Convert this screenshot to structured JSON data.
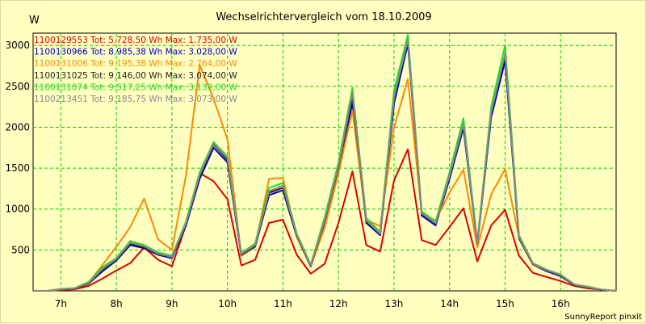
{
  "chart_data": {
    "type": "line",
    "title": "Wechselrichtervergleich vom 18.10.2009",
    "ylabel": "W",
    "xlabel": "",
    "footer": "SunnyReport pinxit",
    "ylim": [
      0,
      3150
    ],
    "xlim": [
      6.5,
      17.0
    ],
    "yticks": [
      500,
      1000,
      1500,
      2000,
      2500,
      3000
    ],
    "xticks": [
      7,
      8,
      9,
      10,
      11,
      12,
      13,
      14,
      15,
      16
    ],
    "xtick_labels": [
      "7h",
      "8h",
      "9h",
      "10h",
      "11h",
      "12h",
      "13h",
      "14h",
      "15h",
      "16h"
    ],
    "grid": true,
    "legend_position": "top-left",
    "x": [
      6.5,
      6.75,
      7.0,
      7.25,
      7.5,
      7.75,
      8.0,
      8.25,
      8.5,
      8.75,
      9.0,
      9.25,
      9.5,
      9.75,
      10.0,
      10.25,
      10.5,
      10.75,
      11.0,
      11.25,
      11.5,
      11.75,
      12.0,
      12.25,
      12.5,
      12.75,
      13.0,
      13.25,
      13.5,
      13.75,
      14.0,
      14.25,
      14.5,
      14.75,
      15.0,
      15.25,
      15.5,
      15.75,
      16.0,
      16.25,
      16.5,
      16.75,
      17.0
    ],
    "series": [
      {
        "name": "1100129553 Tot: 5.728,50 Wh Max: 1.735,00 W",
        "color": "#dd0000",
        "values": [
          0,
          0,
          10,
          20,
          60,
          150,
          250,
          340,
          530,
          380,
          300,
          800,
          1440,
          1340,
          1120,
          310,
          380,
          830,
          870,
          440,
          210,
          330,
          830,
          1460,
          560,
          480,
          1350,
          1730,
          620,
          560,
          780,
          1010,
          360,
          800,
          990,
          430,
          220,
          170,
          120,
          60,
          30,
          15,
          0
        ]
      },
      {
        "name": "1100130966 Tot: 8.985,38 Wh Max: 3.028,00 W",
        "color": "#0000cc",
        "values": [
          0,
          0,
          20,
          30,
          90,
          240,
          370,
          560,
          520,
          440,
          400,
          790,
          1370,
          1750,
          1570,
          430,
          540,
          1170,
          1230,
          660,
          300,
          830,
          1470,
          2300,
          830,
          680,
          2290,
          3020,
          920,
          800,
          1370,
          1990,
          570,
          2120,
          2810,
          640,
          320,
          240,
          180,
          70,
          40,
          15,
          0
        ]
      },
      {
        "name": "1100131006 Tot: 9.195,38 Wh Max: 2.764,00 W",
        "color": "#ff8800",
        "values": [
          0,
          0,
          20,
          30,
          100,
          320,
          540,
          780,
          1130,
          630,
          500,
          1400,
          2760,
          2350,
          1850,
          430,
          550,
          1370,
          1380,
          660,
          300,
          770,
          1440,
          2200,
          870,
          790,
          2000,
          2590,
          940,
          860,
          1200,
          1480,
          530,
          1180,
          1490,
          650,
          320,
          250,
          190,
          80,
          40,
          15,
          0
        ]
      },
      {
        "name": "1100131025 Tot: 9.146,00 Wh Max: 3.074,00 W",
        "color": "#222222",
        "values": [
          0,
          0,
          20,
          30,
          90,
          260,
          380,
          580,
          530,
          450,
          410,
          810,
          1400,
          1790,
          1600,
          440,
          550,
          1200,
          1260,
          670,
          300,
          850,
          1510,
          2380,
          850,
          690,
          2350,
          3070,
          940,
          820,
          1400,
          2030,
          580,
          2170,
          2880,
          650,
          330,
          250,
          190,
          70,
          40,
          15,
          0
        ]
      },
      {
        "name": "1100131074 Tot: 9.517,25 Wh Max: 3.139,00 W",
        "color": "#22dd22",
        "values": [
          0,
          0,
          25,
          35,
          110,
          290,
          400,
          610,
          560,
          470,
          430,
          840,
          1450,
          1820,
          1640,
          460,
          580,
          1260,
          1320,
          700,
          320,
          900,
          1570,
          2480,
          890,
          720,
          2450,
          3130,
          970,
          850,
          1450,
          2110,
          600,
          2250,
          3000,
          680,
          340,
          260,
          200,
          80,
          50,
          15,
          0
        ]
      },
      {
        "name": "1100213451 Tot: 9.185,75 Wh Max: 3.073,00 W",
        "color": "#888888",
        "values": [
          0,
          0,
          20,
          30,
          100,
          270,
          390,
          590,
          545,
          455,
          415,
          820,
          1420,
          1800,
          1620,
          450,
          560,
          1220,
          1290,
          680,
          310,
          860,
          1530,
          2420,
          860,
          700,
          2370,
          3070,
          950,
          825,
          1410,
          2040,
          585,
          2180,
          2900,
          660,
          335,
          255,
          195,
          75,
          45,
          15,
          0
        ]
      }
    ]
  }
}
